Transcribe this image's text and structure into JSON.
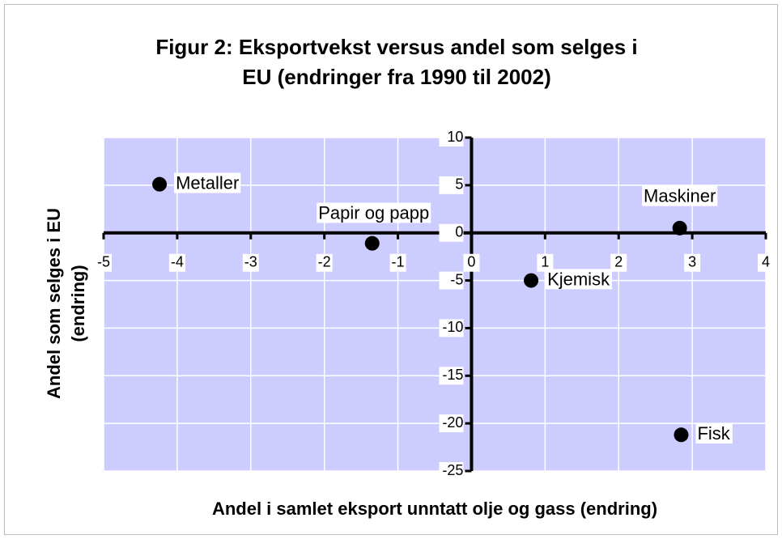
{
  "chart_data": {
    "type": "scatter",
    "title": [
      "Figur 2: Eksportvekst versus andel som selges i",
      "EU (endringer fra 1990 til 2002)"
    ],
    "x_label": "Andel i samlet eksport unntatt olje og gass (endring)",
    "y_label": [
      "Andel som selges i EU",
      "(endring)"
    ],
    "labels": [
      "Metaller",
      "Papir og papp",
      "Maskiner",
      "Kjemisk",
      "Fisk"
    ],
    "x": [
      -4.24,
      -1.35,
      2.83,
      0.81,
      2.85
    ],
    "values": [
      5.1,
      -1.1,
      0.5,
      -5.0,
      -21.2
    ],
    "color": "#000000",
    "background": "#ccccff",
    "xlim": [
      -5,
      4
    ],
    "xticks": [
      -5,
      -4,
      -3,
      -2,
      -1,
      0,
      1,
      2,
      3,
      4
    ],
    "ylim": [
      -25,
      10
    ],
    "yticks": [
      -25,
      -20,
      -15,
      -10,
      -5,
      0,
      5,
      10
    ],
    "grid": true
  }
}
